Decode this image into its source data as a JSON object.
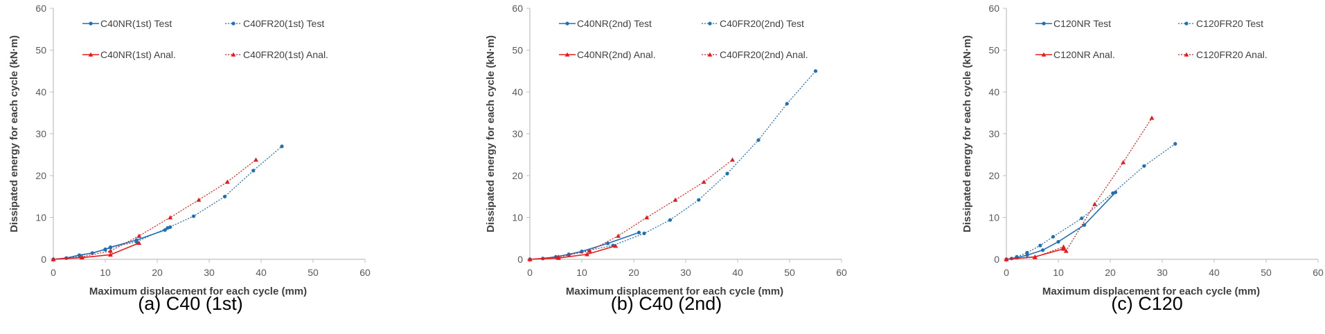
{
  "colors": {
    "test": "#1f6fb5",
    "anal": "#e8191a",
    "axis": "#bfbfbf",
    "tick": "#595959"
  },
  "chart_data": [
    {
      "type": "line",
      "caption": "(a) C40 (1st)",
      "xlabel": "Maximum displacement for each cycle (mm)",
      "ylabel": "Dissipated energy for each cycle (kN·m)",
      "xlim": [
        0,
        60
      ],
      "ylim": [
        0,
        60
      ],
      "xticks": [
        "0",
        "10",
        "20",
        "30",
        "40",
        "50",
        "60"
      ],
      "yticks": [
        "0",
        "10",
        "20",
        "30",
        "40",
        "50",
        "60"
      ],
      "grid": false,
      "legend_position": "top",
      "series": [
        {
          "name": "C40NR(1st) Test",
          "style": "solid",
          "color": "test",
          "marker": "circle",
          "x": [
            0,
            2.5,
            5,
            7.5,
            10,
            11,
            16,
            21.5,
            22.5
          ],
          "y": [
            0,
            0.3,
            1.0,
            1.5,
            2.4,
            2.9,
            4.6,
            7.0,
            7.7
          ]
        },
        {
          "name": "C40FR20(1st) Test",
          "style": "dotted",
          "color": "test",
          "marker": "circle",
          "x": [
            0,
            2.5,
            5,
            7.5,
            10,
            11,
            16,
            22,
            27,
            33,
            38.5,
            44
          ],
          "y": [
            0,
            0.3,
            0.9,
            1.5,
            2.3,
            2.8,
            4.2,
            7.5,
            10.3,
            15.0,
            21.2,
            27.0
          ]
        },
        {
          "name": "C40NR(1st) Anal.",
          "style": "solid",
          "color": "anal",
          "marker": "triangle",
          "x": [
            0,
            5.5,
            11,
            16.5
          ],
          "y": [
            0,
            0.4,
            1.1,
            3.9
          ]
        },
        {
          "name": "C40FR20(1st) Anal.",
          "style": "dotted",
          "color": "anal",
          "marker": "triangle",
          "x": [
            0,
            5.5,
            11,
            16.5,
            22.5,
            28,
            33.5,
            39
          ],
          "y": [
            0,
            0.6,
            2.0,
            5.6,
            10.0,
            14.2,
            18.5,
            23.8
          ]
        }
      ]
    },
    {
      "type": "line",
      "caption": "(b) C40 (2nd)",
      "xlabel": "Maximum displacement for each cycle (mm)",
      "ylabel": "Dissipated energy for each cycle (kN·m)",
      "xlim": [
        0,
        60
      ],
      "ylim": [
        0,
        60
      ],
      "xticks": [
        "0",
        "10",
        "20",
        "30",
        "40",
        "50",
        "60"
      ],
      "yticks": [
        "0",
        "10",
        "20",
        "30",
        "40",
        "50",
        "60"
      ],
      "grid": false,
      "legend_position": "top",
      "series": [
        {
          "name": "C40NR(2nd) Test",
          "style": "solid",
          "color": "test",
          "marker": "circle",
          "x": [
            0,
            2.5,
            5,
            7.5,
            10,
            15,
            21
          ],
          "y": [
            0,
            0.2,
            0.6,
            1.2,
            1.9,
            3.8,
            6.4
          ]
        },
        {
          "name": "C40FR20(2nd) Test",
          "style": "dotted",
          "color": "test",
          "marker": "circle",
          "x": [
            0,
            2.5,
            5,
            7.5,
            10,
            16,
            22,
            27,
            32.5,
            38,
            44,
            49.5,
            55
          ],
          "y": [
            0,
            0.2,
            0.5,
            1.0,
            1.8,
            3.3,
            6.2,
            9.4,
            14.2,
            20.5,
            28.5,
            37.2,
            45.0
          ]
        },
        {
          "name": "C40NR(2nd) Anal.",
          "style": "solid",
          "color": "anal",
          "marker": "triangle",
          "x": [
            0,
            5.5,
            11,
            16.5
          ],
          "y": [
            0,
            0.3,
            1.2,
            3.2
          ]
        },
        {
          "name": "C40FR20(2nd) Anal.",
          "style": "dotted",
          "color": "anal",
          "marker": "triangle",
          "x": [
            0,
            5.5,
            11.5,
            17,
            22.5,
            28,
            33.5,
            39
          ],
          "y": [
            0,
            0.6,
            2.0,
            5.6,
            10.0,
            14.2,
            18.5,
            23.8
          ]
        }
      ]
    },
    {
      "type": "line",
      "caption": "(c) C120",
      "xlabel": "Maximum displacement for each cycle (mm)",
      "ylabel": "Dissipated energy for each cycle (kN·m)",
      "xlim": [
        0,
        60
      ],
      "ylim": [
        0,
        60
      ],
      "xticks": [
        "0",
        "10",
        "20",
        "30",
        "40",
        "50",
        "60"
      ],
      "yticks": [
        "0",
        "10",
        "20",
        "30",
        "40",
        "50",
        "60"
      ],
      "grid": false,
      "legend_position": "top",
      "series": [
        {
          "name": "C120NR Test",
          "style": "solid",
          "color": "test",
          "marker": "circle",
          "x": [
            0,
            2,
            4,
            7,
            10,
            15,
            21
          ],
          "y": [
            0,
            0.4,
            1.0,
            2.2,
            4.2,
            8.2,
            16.0
          ]
        },
        {
          "name": "C120FR20 Test",
          "style": "dotted",
          "color": "test",
          "marker": "circle",
          "x": [
            0,
            1,
            2,
            4,
            6.5,
            9,
            14.5,
            20.5,
            26.5,
            32.5
          ],
          "y": [
            0,
            0.2,
            0.6,
            1.6,
            3.3,
            5.4,
            9.8,
            15.8,
            22.3,
            27.6
          ]
        },
        {
          "name": "C120NR Anal.",
          "style": "solid",
          "color": "anal",
          "marker": "triangle",
          "x": [
            0,
            5.5,
            11
          ],
          "y": [
            0,
            0.6,
            2.5
          ]
        },
        {
          "name": "C120FR20 Anal.",
          "style": "dotted",
          "color": "anal",
          "marker": "triangle",
          "x": [
            0,
            5.5,
            11,
            11.5,
            17,
            22.5,
            28
          ],
          "y": [
            0,
            0.5,
            3.0,
            2.0,
            13.2,
            23.2,
            33.8
          ]
        }
      ]
    }
  ]
}
